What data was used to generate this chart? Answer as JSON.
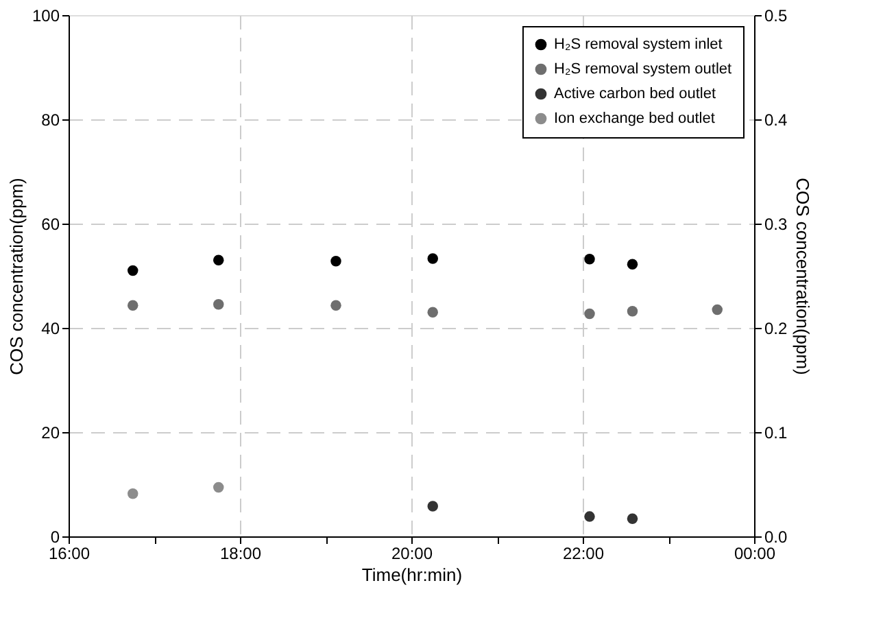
{
  "chart_data": {
    "type": "scatter",
    "xlabel": "Time(hr:min)",
    "ylabel": "COS concentration(ppm)",
    "y2label": "COS concentration(ppm)",
    "xlim": [
      16,
      24
    ],
    "xticks": [
      {
        "value": 16,
        "label": "16:00"
      },
      {
        "value": 17,
        "label": null
      },
      {
        "value": 18,
        "label": "18:00"
      },
      {
        "value": 19,
        "label": null
      },
      {
        "value": 20,
        "label": "20:00"
      },
      {
        "value": 21,
        "label": null
      },
      {
        "value": 22,
        "label": "22:00"
      },
      {
        "value": 23,
        "label": null
      },
      {
        "value": 24,
        "label": "00:00"
      }
    ],
    "ylim": [
      0,
      100
    ],
    "yticks": [
      0,
      20,
      40,
      60,
      80,
      100
    ],
    "y2lim": [
      0,
      0.5
    ],
    "y2ticks": [
      {
        "value": 0,
        "label": "0.0"
      },
      {
        "value": 0.1,
        "label": "0.1"
      },
      {
        "value": 0.2,
        "label": "0.2"
      },
      {
        "value": 0.3,
        "label": "0.3"
      },
      {
        "value": 0.4,
        "label": "0.4"
      },
      {
        "value": 0.5,
        "label": "0.5"
      }
    ],
    "grid": true,
    "legend": "top right",
    "marker": "circle",
    "series": [
      {
        "name": "H₂S removal system inlet",
        "color": "#000000",
        "x": [
          16.75,
          17.75,
          19.12,
          20.25,
          22.08,
          22.58
        ],
        "values": [
          51,
          53,
          52.8,
          53.3,
          53.2,
          52.2
        ]
      },
      {
        "name": "H₂S removal system outlet",
        "color": "#6e6e6e",
        "x": [
          16.75,
          17.75,
          19.12,
          20.25,
          22.08,
          22.58,
          23.57
        ],
        "values": [
          44.3,
          44.5,
          44.3,
          43,
          42.7,
          43.2,
          43.5
        ]
      },
      {
        "name": "Active carbon bed outlet",
        "color": "#333333",
        "axis": "y2",
        "x": [
          20.25,
          22.08,
          22.58
        ],
        "values": [
          0.029,
          0.019,
          0.017
        ]
      },
      {
        "name": "Ion exchange bed outlet",
        "color": "#8c8c8c",
        "axis": "y2",
        "x": [
          16.75,
          17.75
        ],
        "values": [
          0.041,
          0.047
        ]
      }
    ]
  }
}
